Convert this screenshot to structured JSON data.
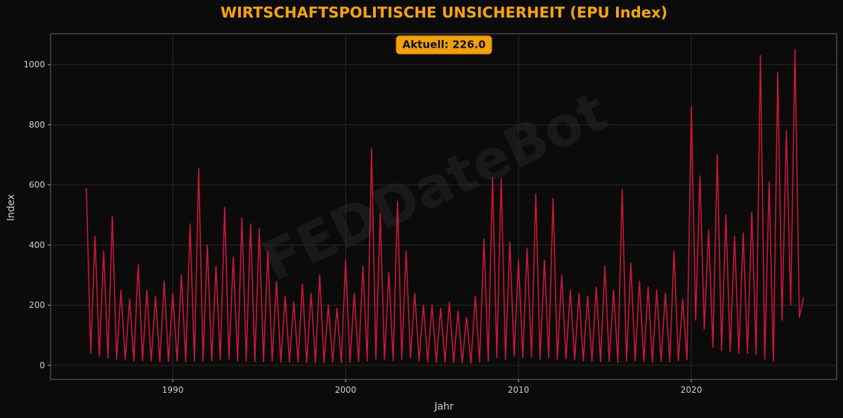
{
  "chart_data": {
    "type": "line",
    "title": "WIRTSCHAFTSPOLITISCHE UNSICHERHEIT (EPU Index)",
    "annotation": "Aktuell: 226.0",
    "watermark": "FEDDateBot",
    "x_label": "Jahr",
    "y_label": "Index",
    "x": [
      1985,
      1985.25,
      1985.5,
      1985.75,
      1986,
      1986.25,
      1986.5,
      1986.75,
      1987,
      1987.25,
      1987.5,
      1987.75,
      1988,
      1988.25,
      1988.5,
      1988.75,
      1989,
      1989.25,
      1989.5,
      1989.75,
      1990,
      1990.25,
      1990.5,
      1990.75,
      1991,
      1991.25,
      1991.5,
      1991.75,
      1992,
      1992.25,
      1992.5,
      1992.75,
      1993,
      1993.25,
      1993.5,
      1993.75,
      1994,
      1994.25,
      1994.5,
      1994.75,
      1995,
      1995.25,
      1995.5,
      1995.75,
      1996,
      1996.25,
      1996.5,
      1996.75,
      1997,
      1997.25,
      1997.5,
      1997.75,
      1998,
      1998.25,
      1998.5,
      1998.75,
      1999,
      1999.25,
      1999.5,
      1999.75,
      2000,
      2000.25,
      2000.5,
      2000.75,
      2001,
      2001.25,
      2001.5,
      2001.75,
      2002,
      2002.25,
      2002.5,
      2002.75,
      2003,
      2003.25,
      2003.5,
      2003.75,
      2004,
      2004.25,
      2004.5,
      2004.75,
      2005,
      2005.25,
      2005.5,
      2005.75,
      2006,
      2006.25,
      2006.5,
      2006.75,
      2007,
      2007.25,
      2007.5,
      2007.75,
      2008,
      2008.25,
      2008.5,
      2008.75,
      2009,
      2009.25,
      2009.5,
      2009.75,
      2010,
      2010.25,
      2010.5,
      2010.75,
      2011,
      2011.25,
      2011.5,
      2011.75,
      2012,
      2012.25,
      2012.5,
      2012.75,
      2013,
      2013.25,
      2013.5,
      2013.75,
      2014,
      2014.25,
      2014.5,
      2014.75,
      2015,
      2015.25,
      2015.5,
      2015.75,
      2016,
      2016.25,
      2016.5,
      2016.75,
      2017,
      2017.25,
      2017.5,
      2017.75,
      2018,
      2018.25,
      2018.5,
      2018.75,
      2019,
      2019.25,
      2019.5,
      2019.75,
      2020,
      2020.25,
      2020.5,
      2020.75,
      2021,
      2021.25,
      2021.5,
      2021.75,
      2022,
      2022.25,
      2022.5,
      2022.75,
      2023,
      2023.25,
      2023.5,
      2023.75,
      2024,
      2024.25,
      2024.5,
      2024.75,
      2025,
      2025.25,
      2025.5,
      2025.75,
      2026,
      2026.25,
      2026.5
    ],
    "series": [
      {
        "name": "EPU",
        "color": "#d0163a",
        "values": [
          590,
          40,
          430,
          30,
          380,
          25,
          495,
          20,
          250,
          18,
          220,
          15,
          335,
          15,
          250,
          14,
          230,
          12,
          280,
          13,
          240,
          14,
          300,
          12,
          470,
          15,
          655,
          14,
          400,
          15,
          330,
          18,
          525,
          20,
          360,
          15,
          490,
          14,
          470,
          12,
          455,
          12,
          380,
          14,
          280,
          10,
          230,
          11,
          210,
          10,
          270,
          9,
          240,
          9,
          300,
          8,
          200,
          10,
          190,
          9,
          350,
          10,
          240,
          12,
          330,
          15,
          720,
          20,
          505,
          18,
          310,
          15,
          545,
          20,
          380,
          25,
          240,
          15,
          200,
          12,
          200,
          10,
          190,
          10,
          210,
          8,
          180,
          9,
          160,
          6,
          230,
          10,
          420,
          15,
          625,
          25,
          620,
          20,
          410,
          30,
          350,
          25,
          390,
          28,
          570,
          20,
          350,
          25,
          555,
          20,
          300,
          22,
          250,
          18,
          240,
          15,
          230,
          14,
          260,
          12,
          330,
          13,
          250,
          10,
          585,
          14,
          340,
          15,
          280,
          12,
          260,
          10,
          250,
          13,
          240,
          12,
          380,
          15,
          220,
          18,
          860,
          150,
          630,
          120,
          450,
          60,
          700,
          50,
          500,
          45,
          430,
          40,
          440,
          40,
          510,
          35,
          1030,
          20,
          610,
          15,
          975,
          150,
          780,
          200,
          1050,
          160,
          226
        ]
      }
    ],
    "xlim": [
      1982.93,
      2028.41
    ],
    "ylim": [
      -47,
      1103
    ],
    "xticks": [
      1990,
      2000,
      2010,
      2020
    ],
    "yticks": [
      0,
      200,
      400,
      600,
      800,
      1000
    ],
    "grid": true
  }
}
